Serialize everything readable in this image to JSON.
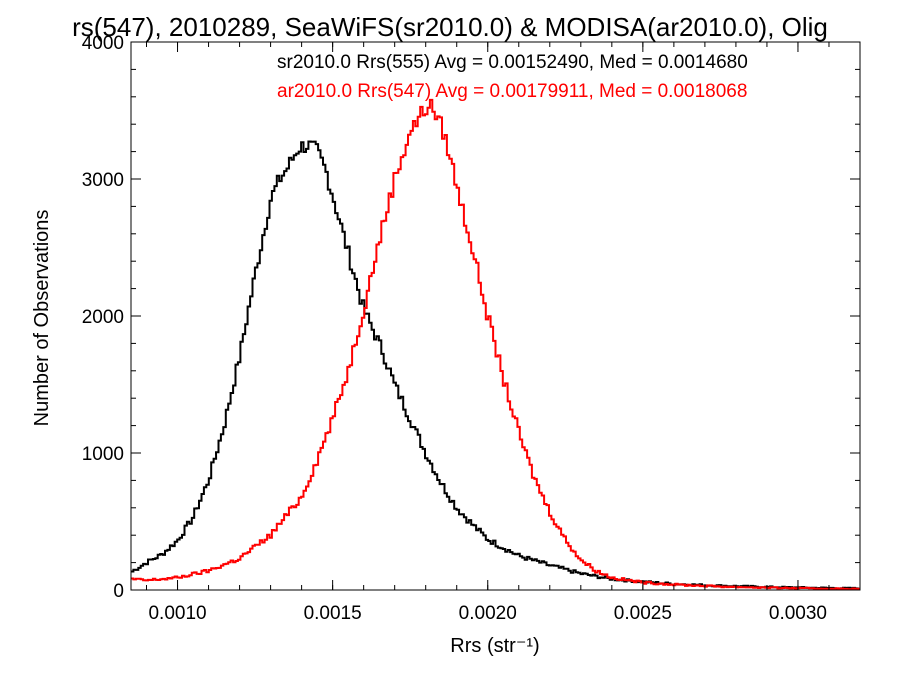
{
  "chart_data": {
    "type": "line",
    "title": "rs(547), 2010289, SeaWiFS(sr2010.0) & MODISA(ar2010.0), Olig",
    "xlabel": "Rrs (str⁻¹)",
    "ylabel": "Number of Observations",
    "xlim": [
      0.00085,
      0.0032
    ],
    "ylim": [
      0,
      4000
    ],
    "x_ticks": [
      0.001,
      0.0015,
      0.002,
      0.0025,
      0.003
    ],
    "x_tick_labels": [
      "0.0010",
      "0.0015",
      "0.0020",
      "0.0025",
      "0.0030"
    ],
    "y_ticks": [
      0,
      1000,
      2000,
      3000,
      4000
    ],
    "y_tick_labels": [
      "0",
      "1000",
      "2000",
      "3000",
      "4000"
    ],
    "grid": false,
    "legend": "top-right",
    "series": [
      {
        "name": "sr2010.0 Rrs(555)",
        "label": "sr2010.0 Rrs(555) Avg = 0.00152490, Med = 0.0014680",
        "color": "#000000",
        "x": [
          0.00085,
          0.0009,
          0.00095,
          0.001,
          0.00105,
          0.0011,
          0.00115,
          0.0012,
          0.00125,
          0.0013,
          0.00133,
          0.00136,
          0.00139,
          0.00142,
          0.00145,
          0.00148,
          0.00151,
          0.00154,
          0.00157,
          0.0016,
          0.00163,
          0.00166,
          0.0017,
          0.00175,
          0.0018,
          0.00185,
          0.0019,
          0.00195,
          0.002,
          0.0021,
          0.0022,
          0.0023,
          0.0024,
          0.0025,
          0.0026,
          0.0027,
          0.0028,
          0.0029,
          0.003,
          0.0031,
          0.0032
        ],
        "y": [
          130,
          200,
          260,
          360,
          530,
          800,
          1200,
          1700,
          2300,
          2850,
          3000,
          3100,
          3230,
          3250,
          3200,
          3050,
          2800,
          2550,
          2300,
          2050,
          1900,
          1750,
          1500,
          1250,
          1000,
          780,
          600,
          480,
          370,
          250,
          180,
          120,
          80,
          60,
          45,
          35,
          28,
          22,
          18,
          15,
          12
        ]
      },
      {
        "name": "ar2010.0 Rrs(547)",
        "label": "ar2010.0 Rrs(547) Avg = 0.00179911, Med = 0.0018068",
        "color": "#ff0000",
        "x": [
          0.00085,
          0.0009,
          0.001,
          0.0011,
          0.0012,
          0.0013,
          0.0014,
          0.00145,
          0.0015,
          0.00155,
          0.0016,
          0.00165,
          0.0017,
          0.00175,
          0.00178,
          0.00181,
          0.00184,
          0.00187,
          0.0019,
          0.00195,
          0.002,
          0.00205,
          0.0021,
          0.00215,
          0.0022,
          0.00225,
          0.0023,
          0.00235,
          0.0024,
          0.0025,
          0.0026,
          0.0027,
          0.0028,
          0.0029,
          0.003,
          0.0031,
          0.0032
        ],
        "y": [
          80,
          70,
          90,
          140,
          230,
          400,
          680,
          950,
          1250,
          1600,
          2050,
          2550,
          3000,
          3350,
          3450,
          3550,
          3450,
          3250,
          2950,
          2500,
          2000,
          1550,
          1150,
          820,
          570,
          370,
          220,
          140,
          90,
          55,
          40,
          30,
          22,
          17,
          13,
          10,
          8
        ]
      }
    ]
  }
}
